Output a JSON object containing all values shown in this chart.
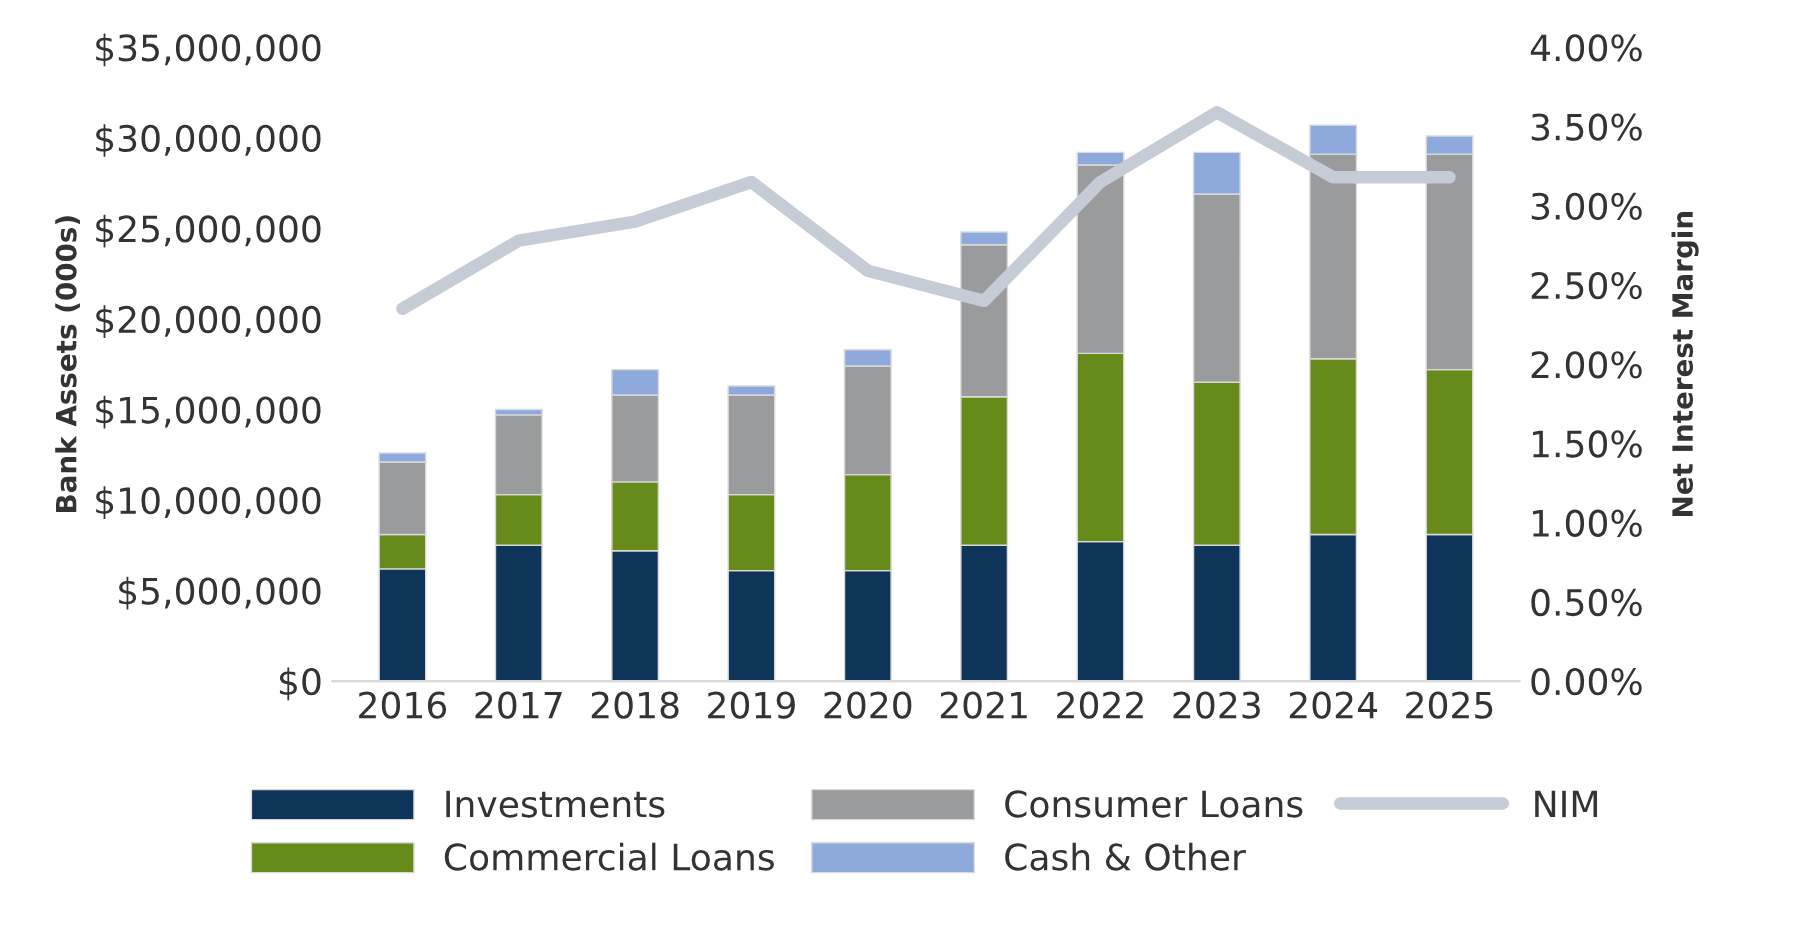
{
  "chart_data": {
    "type": "bar",
    "stacked": true,
    "ylabel": "Bank Assets (000s)",
    "y2label": "Net Interest Margin",
    "categories": [
      "2016",
      "2017",
      "2018",
      "2019",
      "2020",
      "2021",
      "2022",
      "2023",
      "2024",
      "2025"
    ],
    "series": [
      {
        "name": "Investments",
        "color": "#0f3459",
        "values": [
          6200000,
          7500000,
          7200000,
          6100000,
          6100000,
          7500000,
          7700000,
          7500000,
          8100000,
          8100000
        ]
      },
      {
        "name": "Commercial Loans",
        "color": "#668b1b",
        "values": [
          1900000,
          2800000,
          3800000,
          4200000,
          5300000,
          8200000,
          10400000,
          9000000,
          9700000,
          9100000
        ]
      },
      {
        "name": "Consumer Loans",
        "color": "#9a9b9d",
        "values": [
          4000000,
          4400000,
          4800000,
          5500000,
          6000000,
          8400000,
          10400000,
          10400000,
          11300000,
          11900000
        ]
      },
      {
        "name": "Cash & Other",
        "color": "#8eaadc",
        "values": [
          500000,
          300000,
          1400000,
          500000,
          900000,
          700000,
          700000,
          2300000,
          1600000,
          1000000
        ]
      },
      {
        "name": "NIM",
        "type": "line",
        "axis": "y2",
        "color": "#c5ccd6",
        "values": [
          2.35,
          2.78,
          2.9,
          3.15,
          2.59,
          2.4,
          3.15,
          3.59,
          3.18,
          3.18
        ]
      }
    ],
    "ylim": [
      0,
      35000000
    ],
    "yticks": [
      {
        "value": 0,
        "label": "$0"
      },
      {
        "value": 5000000,
        "label": "$5,000,000"
      },
      {
        "value": 10000000,
        "label": "$10,000,000"
      },
      {
        "value": 15000000,
        "label": "$15,000,000"
      },
      {
        "value": 20000000,
        "label": "$20,000,000"
      },
      {
        "value": 25000000,
        "label": "$25,000,000"
      },
      {
        "value": 30000000,
        "label": "$30,000,000"
      },
      {
        "value": 35000000,
        "label": "$35,000,000"
      }
    ],
    "y2lim": [
      0,
      4
    ],
    "y2ticks": [
      {
        "value": 0,
        "label": "0.00%"
      },
      {
        "value": 0.5,
        "label": "0.50%"
      },
      {
        "value": 1,
        "label": "1.00%"
      },
      {
        "value": 1.5,
        "label": "1.50%"
      },
      {
        "value": 2,
        "label": "2.00%"
      },
      {
        "value": 2.5,
        "label": "2.50%"
      },
      {
        "value": 3,
        "label": "3.00%"
      },
      {
        "value": 3.5,
        "label": "3.50%"
      },
      {
        "value": 4,
        "label": "4.00%"
      }
    ],
    "grid": false,
    "legend": "bottom",
    "marker": "none",
    "line_style": "solid"
  }
}
